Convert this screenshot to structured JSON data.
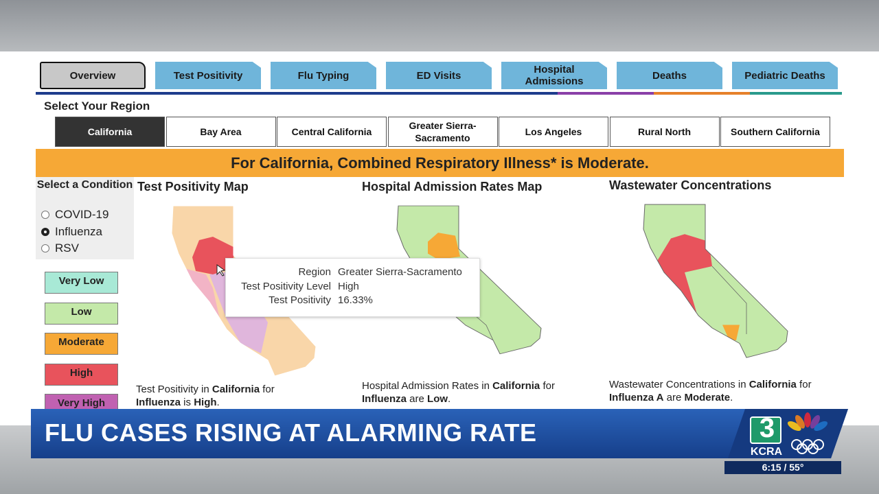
{
  "tabs": [
    "Overview",
    "Test Positivity",
    "Flu Typing",
    "ED Visits",
    "Hospital Admissions",
    "Deaths",
    "Pediatric Deaths"
  ],
  "region_prompt": "Select Your Region",
  "regions": [
    "California",
    "Bay Area",
    "Central California",
    "Greater Sierra-Sacramento",
    "Los Angeles",
    "Rural North",
    "Southern California"
  ],
  "banner": "For California, Combined Respiratory Illness* is Moderate.",
  "condition": {
    "title": "Select a Condition",
    "options": [
      "COVID-19",
      "Influenza",
      "RSV"
    ]
  },
  "legend": [
    {
      "label": "Very Low",
      "color": "#a8e9d6"
    },
    {
      "label": "Low",
      "color": "#c4e9a9"
    },
    {
      "label": "Moderate",
      "color": "#f6a836"
    },
    {
      "label": "High",
      "color": "#e8535c"
    },
    {
      "label": "Very High",
      "color": "#c061b1"
    }
  ],
  "panels": [
    {
      "title": "Test Positivity Map",
      "caption": [
        {
          "text": "Test Positivity in ",
          "bold": false
        },
        {
          "text": "California",
          "bold": true
        },
        {
          "text": " for ",
          "bold": false
        },
        {
          "text": "Influenza",
          "bold": true
        },
        {
          "text": " is ",
          "bold": false
        },
        {
          "text": "High",
          "bold": true
        },
        {
          "text": ".",
          "bold": false
        }
      ]
    },
    {
      "title": "Hospital Admission Rates Map",
      "caption": [
        {
          "text": "Hospital Admission Rates in ",
          "bold": false
        },
        {
          "text": "California",
          "bold": true
        },
        {
          "text": " for ",
          "bold": false
        },
        {
          "text": "Influenza",
          "bold": true
        },
        {
          "text": " are ",
          "bold": false
        },
        {
          "text": "Low",
          "bold": true
        },
        {
          "text": ".",
          "bold": false
        }
      ]
    },
    {
      "title": "Wastewater Concentrations",
      "caption": [
        {
          "text": "Wastewater Concentrations in ",
          "bold": false
        },
        {
          "text": "California",
          "bold": true
        },
        {
          "text": " for ",
          "bold": false
        },
        {
          "text": "Influenza A",
          "bold": true
        },
        {
          "text": " are ",
          "bold": false
        },
        {
          "text": "Moderate",
          "bold": true
        },
        {
          "text": ".",
          "bold": false
        }
      ]
    }
  ],
  "tooltip": {
    "rows": [
      {
        "label": "Region",
        "value": "Greater Sierra-Sacramento"
      },
      {
        "label": "Test Positivity Level",
        "value": "High"
      },
      {
        "label": "Test Positivity",
        "value": "16.33%"
      }
    ]
  },
  "broadcast": {
    "headline": "FLU CASES RISING AT ALARMING RATE",
    "channel": "3",
    "station": "KCRA",
    "time_temp": "6:15 / 55°"
  }
}
